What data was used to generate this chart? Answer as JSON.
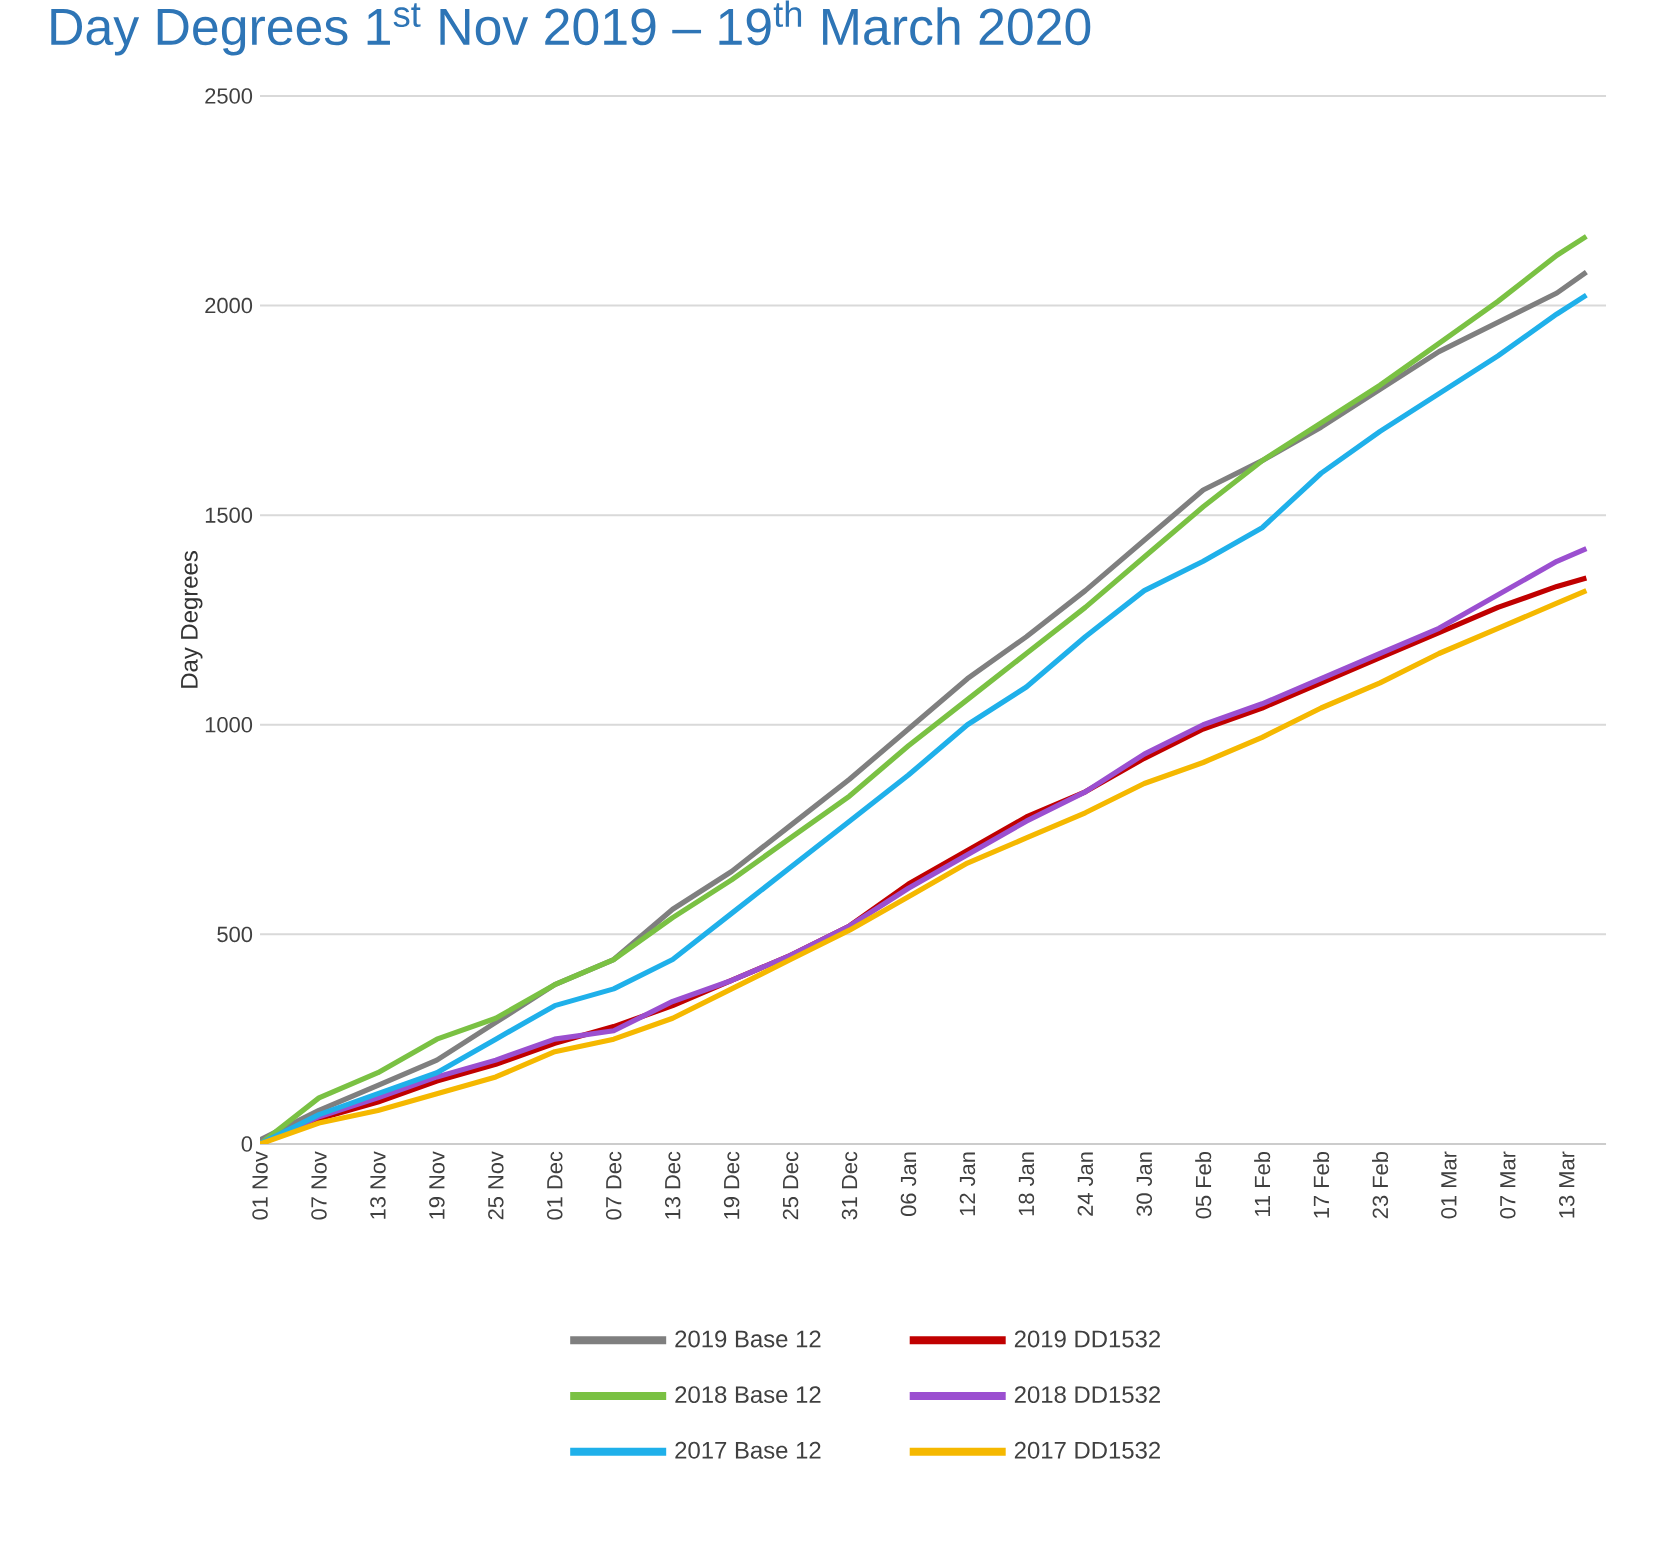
{
  "chart_data": {
    "type": "line",
    "title": "Day Degrees 1$^{st}$ Nov 2019 – 19$^{th}$ March 2020",
    "ylabel": "Day Degrees",
    "x": [
      "2019-11-01",
      "2019-11-07",
      "2019-11-13",
      "2019-11-19",
      "2019-11-25",
      "2019-12-01",
      "2019-12-07",
      "2019-12-13",
      "2019-12-19",
      "2019-12-25",
      "2019-12-31",
      "2020-01-06",
      "2020-01-12",
      "2020-01-18",
      "2020-01-24",
      "2020-01-30",
      "2020-02-05",
      "2020-02-11",
      "2020-02-17",
      "2020-02-23",
      "2020-02-29",
      "2020-03-06",
      "2020-03-12",
      "2020-03-15"
    ],
    "xlim": [
      "2019-11-01",
      "2020-03-17"
    ],
    "xticks": [
      {
        "value": "2019-11-01",
        "label": "01 Nov"
      },
      {
        "value": "2019-11-07",
        "label": "07 Nov"
      },
      {
        "value": "2019-11-13",
        "label": "13 Nov"
      },
      {
        "value": "2019-11-19",
        "label": "19 Nov"
      },
      {
        "value": "2019-11-25",
        "label": "25 Nov"
      },
      {
        "value": "2019-12-01",
        "label": "01 Dec"
      },
      {
        "value": "2019-12-07",
        "label": "07 Dec"
      },
      {
        "value": "2019-12-13",
        "label": "13 Dec"
      },
      {
        "value": "2019-12-19",
        "label": "19 Dec"
      },
      {
        "value": "2019-12-25",
        "label": "25 Dec"
      },
      {
        "value": "2019-12-31",
        "label": "31 Dec"
      },
      {
        "value": "2020-01-06",
        "label": "06 Jan"
      },
      {
        "value": "2020-01-12",
        "label": "12 Jan"
      },
      {
        "value": "2020-01-18",
        "label": "18 Jan"
      },
      {
        "value": "2020-01-24",
        "label": "24 Jan"
      },
      {
        "value": "2020-01-30",
        "label": "30 Jan"
      },
      {
        "value": "2020-02-05",
        "label": "05 Feb"
      },
      {
        "value": "2020-02-11",
        "label": "11 Feb"
      },
      {
        "value": "2020-02-17",
        "label": "17 Feb"
      },
      {
        "value": "2020-02-23",
        "label": "23 Feb"
      },
      {
        "value": "2020-03-01",
        "label": "01 Mar"
      },
      {
        "value": "2020-03-07",
        "label": "07 Mar"
      },
      {
        "value": "2020-03-13",
        "label": "13 Mar"
      }
    ],
    "ylim": [
      0,
      2500
    ],
    "yticks": [
      0,
      500,
      1000,
      1500,
      2000,
      2500
    ],
    "grid": "y",
    "legend": "bottom",
    "marker": "none",
    "line_style": "solid",
    "series": [
      {
        "name": "2019 Base 12",
        "color": "#7f7f7f",
        "values": [
          10,
          80,
          140,
          200,
          290,
          380,
          440,
          560,
          650,
          760,
          870,
          990,
          1110,
          1210,
          1320,
          1440,
          1560,
          1630,
          1710,
          1800,
          1890,
          1960,
          2030,
          2080
        ]
      },
      {
        "name": "2019 DD1532",
        "color": "#c00000",
        "values": [
          0,
          60,
          100,
          150,
          190,
          240,
          280,
          330,
          390,
          450,
          520,
          620,
          700,
          780,
          840,
          920,
          990,
          1040,
          1100,
          1160,
          1220,
          1280,
          1330,
          1350
        ]
      },
      {
        "name": "2018 Base 12",
        "color": "#7ac143",
        "values": [
          0,
          110,
          170,
          250,
          300,
          380,
          440,
          540,
          630,
          730,
          830,
          950,
          1060,
          1170,
          1280,
          1400,
          1520,
          1630,
          1720,
          1810,
          1910,
          2010,
          2120,
          2165
        ]
      },
      {
        "name": "2018 DD1532",
        "color": "#9b4fd0",
        "values": [
          0,
          65,
          110,
          160,
          200,
          250,
          270,
          340,
          390,
          450,
          520,
          610,
          690,
          770,
          840,
          930,
          1000,
          1050,
          1110,
          1170,
          1230,
          1310,
          1390,
          1420
        ]
      },
      {
        "name": "2017 Base 12",
        "color": "#1fb0ea",
        "values": [
          0,
          70,
          120,
          170,
          250,
          330,
          370,
          440,
          550,
          660,
          770,
          880,
          1000,
          1090,
          1210,
          1320,
          1390,
          1470,
          1600,
          1700,
          1790,
          1880,
          1980,
          2025
        ]
      },
      {
        "name": "2017 DD1532",
        "color": "#f5b800",
        "values": [
          0,
          50,
          80,
          120,
          160,
          220,
          250,
          300,
          370,
          440,
          510,
          590,
          670,
          730,
          790,
          860,
          910,
          970,
          1040,
          1100,
          1170,
          1230,
          1290,
          1320
        ]
      }
    ]
  }
}
